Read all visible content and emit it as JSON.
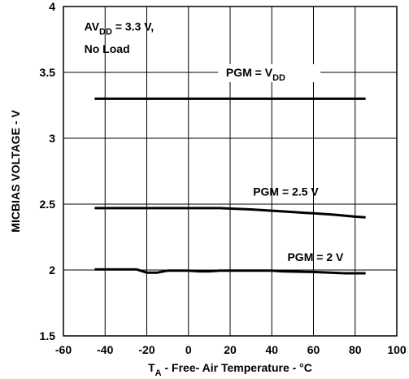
{
  "chart_data": {
    "type": "line",
    "xlabel": {
      "main": "T",
      "sub": "A",
      "rest": " - Free- Air Temperature - °C"
    },
    "ylabel": "MICBIAS VOLTAGE - V",
    "xlim": [
      -60,
      100
    ],
    "ylim": [
      1.5,
      4
    ],
    "xticks": [
      -60,
      -40,
      -20,
      0,
      20,
      40,
      60,
      80,
      100
    ],
    "yticks": [
      1.5,
      2,
      2.5,
      3,
      3.5,
      4
    ],
    "grid": true,
    "annotation": {
      "line1_main": "AV",
      "line1_sub": "DD",
      "line1_rest": " = 3.3 V,",
      "line2": "No Load"
    },
    "series": [
      {
        "name": "PGM = V",
        "name_sub": "DD",
        "x": [
          -45,
          -30,
          -15,
          0,
          15,
          30,
          45,
          60,
          75,
          85
        ],
        "y": [
          3.3,
          3.3,
          3.3,
          3.3,
          3.3,
          3.3,
          3.3,
          3.3,
          3.3,
          3.3
        ]
      },
      {
        "name": "PGM = 2.5 V",
        "x": [
          -45,
          -30,
          -15,
          0,
          15,
          30,
          45,
          60,
          70,
          80,
          85
        ],
        "y": [
          2.47,
          2.47,
          2.47,
          2.47,
          2.47,
          2.46,
          2.445,
          2.43,
          2.42,
          2.405,
          2.4
        ]
      },
      {
        "name": "PGM = 2 V",
        "x": [
          -45,
          -25,
          -20,
          -15,
          -10,
          -5,
          0,
          5,
          10,
          15,
          20,
          40,
          45,
          60,
          75,
          85
        ],
        "y": [
          2.005,
          2.005,
          1.98,
          1.98,
          1.995,
          1.995,
          1.995,
          1.99,
          1.99,
          1.995,
          1.995,
          1.995,
          1.99,
          1.985,
          1.975,
          1.975
        ]
      }
    ]
  }
}
